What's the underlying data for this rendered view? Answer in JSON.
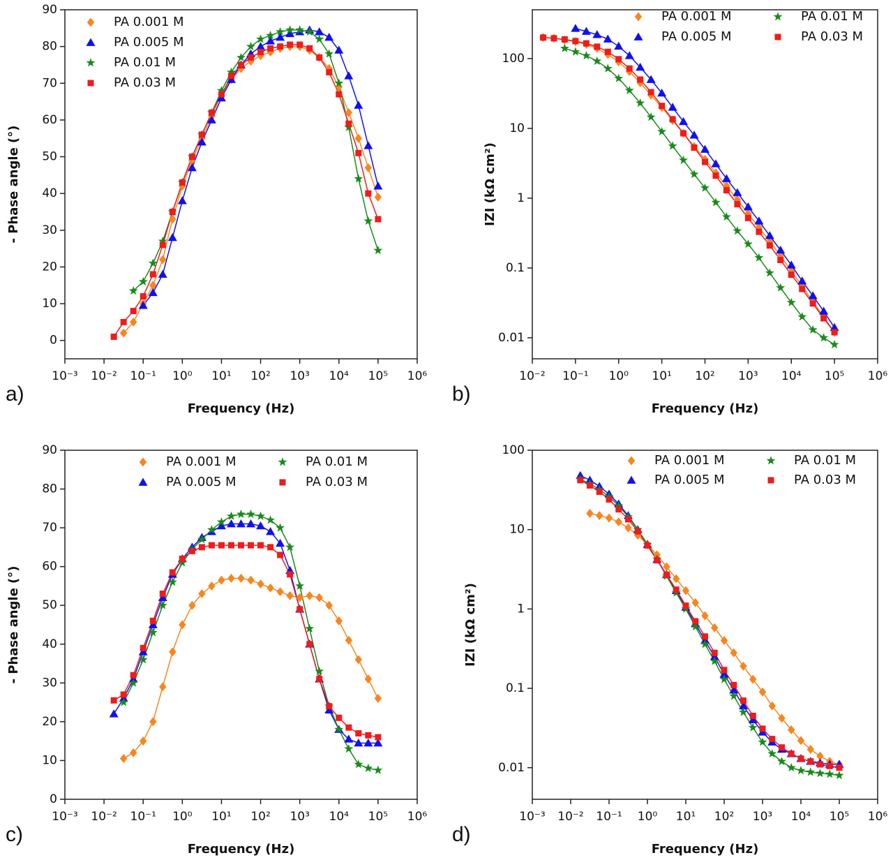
{
  "chart_data": [
    {
      "type": "line",
      "panel_label": "a)",
      "x_label": "Frequency (Hz)",
      "y_label": "- Phase angle (°)",
      "xscale": "log",
      "yscale": "linear",
      "legend": "upper left",
      "legend_columns": 1,
      "xlim": [
        0.001,
        1000000
      ],
      "xticks": [
        {
          "value": 0.001,
          "label": "10⁻³"
        },
        {
          "value": 0.01,
          "label": "10⁻²"
        },
        {
          "value": 0.1,
          "label": "10⁻¹"
        },
        {
          "value": 1,
          "label": "10⁰"
        },
        {
          "value": 10,
          "label": "10¹"
        },
        {
          "value": 100,
          "label": "10²"
        },
        {
          "value": 1000,
          "label": "10³"
        },
        {
          "value": 10000,
          "label": "10⁴"
        },
        {
          "value": 100000,
          "label": "10⁵"
        },
        {
          "value": 1000000,
          "label": "10⁶"
        }
      ],
      "ylim": [
        -5,
        90
      ],
      "yticks": [
        0,
        10,
        20,
        30,
        40,
        50,
        60,
        70,
        80,
        90
      ],
      "x": [
        0.0178,
        0.0316,
        0.0562,
        0.1,
        0.178,
        0.316,
        0.562,
        1,
        1.78,
        3.16,
        5.62,
        10,
        17.8,
        31.6,
        56.2,
        100,
        178,
        316,
        562,
        1000,
        1780,
        3160,
        5620,
        10000,
        17800,
        31600,
        56200,
        100000
      ],
      "series": [
        {
          "name": "PA 0.001 M",
          "color": "#f7861e",
          "marker": "diamond",
          "values": [
            null,
            2,
            5,
            10,
            15,
            22,
            33,
            42,
            49,
            55,
            61,
            67,
            71,
            74,
            76,
            77.5,
            78.5,
            79.5,
            80,
            80,
            79,
            77,
            74,
            69,
            62,
            55,
            47,
            39
          ]
        },
        {
          "name": "PA 0.005 M",
          "color": "#1010f0",
          "marker": "triangle",
          "values": [
            null,
            null,
            null,
            9.5,
            13,
            18,
            28,
            38,
            47,
            54,
            60,
            66,
            71,
            75,
            78,
            80,
            81.5,
            82.5,
            83.5,
            84,
            84.5,
            84,
            82.5,
            79,
            72,
            64,
            53,
            42
          ]
        },
        {
          "name": "PA 0.01 M",
          "color": "#1a8a1a",
          "marker": "star",
          "values": [
            null,
            null,
            13.5,
            16,
            21,
            27,
            35,
            43,
            50,
            56,
            62,
            68,
            73,
            77,
            80,
            82,
            83,
            84,
            84.5,
            84.5,
            84,
            82,
            78,
            70,
            58,
            44,
            32.5,
            24.5
          ]
        },
        {
          "name": "PA 0.03 M",
          "color": "#ee1c1c",
          "marker": "square",
          "values": [
            1,
            5,
            8,
            12,
            18,
            26,
            35,
            43,
            50,
            56,
            62,
            67,
            72,
            75,
            77,
            78.5,
            79.5,
            80,
            80.5,
            80.5,
            79.5,
            77,
            73,
            67,
            59,
            51,
            40,
            33
          ]
        }
      ]
    },
    {
      "type": "line",
      "panel_label": "b)",
      "x_label": "Frequency (Hz)",
      "y_label": "IZI (kΩ cm²)",
      "xscale": "log",
      "yscale": "log",
      "legend": "upper right",
      "legend_columns": 2,
      "xlim": [
        0.01,
        1000000
      ],
      "xticks": [
        {
          "value": 0.01,
          "label": "10⁻²"
        },
        {
          "value": 0.1,
          "label": "10⁻¹"
        },
        {
          "value": 1,
          "label": "10⁰"
        },
        {
          "value": 10,
          "label": "10¹"
        },
        {
          "value": 100,
          "label": "10²"
        },
        {
          "value": 1000,
          "label": "10³"
        },
        {
          "value": 10000,
          "label": "10⁴"
        },
        {
          "value": 100000,
          "label": "10⁵"
        },
        {
          "value": 1000000,
          "label": "10⁶"
        }
      ],
      "ylim": [
        0.005,
        500
      ],
      "yticks": [
        0.01,
        0.1,
        1,
        10,
        100
      ],
      "x": [
        0.0178,
        0.0316,
        0.0562,
        0.1,
        0.178,
        0.316,
        0.562,
        1,
        1.78,
        3.16,
        5.62,
        10,
        17.8,
        31.6,
        56.2,
        100,
        178,
        316,
        562,
        1000,
        1780,
        3160,
        5620,
        10000,
        17800,
        31600,
        56200,
        100000
      ],
      "series": [
        {
          "name": "PA 0.001 M",
          "color": "#f7861e",
          "marker": "diamond",
          "values": [
            200,
            195,
            185,
            175,
            160,
            140,
            115,
            90,
            65,
            45,
            30,
            20,
            13,
            8.5,
            5.5,
            3.6,
            2.3,
            1.5,
            0.95,
            0.6,
            0.38,
            0.24,
            0.15,
            0.09,
            0.055,
            0.033,
            0.02,
            0.012
          ]
        },
        {
          "name": "PA 0.005 M",
          "color": "#1010f0",
          "marker": "triangle",
          "values": [
            null,
            null,
            null,
            270,
            245,
            220,
            190,
            150,
            110,
            75,
            50,
            32,
            20,
            12.5,
            8,
            5,
            3.1,
            1.9,
            1.2,
            0.75,
            0.47,
            0.29,
            0.18,
            0.11,
            0.065,
            0.04,
            0.024,
            0.014
          ]
        },
        {
          "name": "PA 0.01 M",
          "color": "#1a8a1a",
          "marker": "star",
          "values": [
            null,
            null,
            140,
            125,
            110,
            92,
            72,
            52,
            35,
            23,
            14.5,
            9,
            5.6,
            3.5,
            2.2,
            1.4,
            0.87,
            0.54,
            0.34,
            0.22,
            0.14,
            0.085,
            0.052,
            0.032,
            0.02,
            0.013,
            0.01,
            0.008
          ]
        },
        {
          "name": "PA 0.03 M",
          "color": "#ee1c1c",
          "marker": "square",
          "values": [
            200,
            195,
            188,
            178,
            165,
            148,
            125,
            98,
            72,
            50,
            33,
            21,
            13.5,
            8.5,
            5.3,
            3.3,
            2.1,
            1.3,
            0.82,
            0.52,
            0.33,
            0.21,
            0.13,
            0.08,
            0.05,
            0.031,
            0.019,
            0.012
          ]
        }
      ]
    },
    {
      "type": "line",
      "panel_label": "c)",
      "x_label": "Frequency (Hz)",
      "y_label": "- Phase angle (°)",
      "xscale": "log",
      "yscale": "linear",
      "legend": "upper center",
      "legend_columns": 2,
      "xlim": [
        0.001,
        1000000
      ],
      "xticks": [
        {
          "value": 0.001,
          "label": "10⁻³"
        },
        {
          "value": 0.01,
          "label": "10⁻²"
        },
        {
          "value": 0.1,
          "label": "10⁻¹"
        },
        {
          "value": 1,
          "label": "10⁰"
        },
        {
          "value": 10,
          "label": "10¹"
        },
        {
          "value": 100,
          "label": "10²"
        },
        {
          "value": 1000,
          "label": "10³"
        },
        {
          "value": 10000,
          "label": "10⁴"
        },
        {
          "value": 100000,
          "label": "10⁵"
        },
        {
          "value": 1000000,
          "label": "10⁶"
        }
      ],
      "ylim": [
        0,
        90
      ],
      "yticks": [
        0,
        10,
        20,
        30,
        40,
        50,
        60,
        70,
        80,
        90
      ],
      "x": [
        0.0178,
        0.0316,
        0.0562,
        0.1,
        0.178,
        0.316,
        0.562,
        1,
        1.78,
        3.16,
        5.62,
        10,
        17.8,
        31.6,
        56.2,
        100,
        178,
        316,
        562,
        1000,
        1780,
        3160,
        5620,
        10000,
        17800,
        31600,
        56200,
        100000
      ],
      "series": [
        {
          "name": "PA 0.001 M",
          "color": "#f7861e",
          "marker": "diamond",
          "values": [
            null,
            10.5,
            12,
            15,
            20,
            29,
            38,
            45,
            50,
            53,
            55,
            56.5,
            57,
            57,
            56.5,
            55.5,
            54.5,
            53.5,
            52.5,
            52,
            52.5,
            52,
            50,
            46,
            41,
            36,
            31,
            26
          ]
        },
        {
          "name": "PA 0.005 M",
          "color": "#1010f0",
          "marker": "triangle",
          "values": [
            22,
            26,
            31,
            38,
            45,
            52,
            58,
            62,
            65,
            67.5,
            69,
            70.5,
            71,
            71,
            71,
            70.5,
            69,
            66,
            59,
            49,
            40,
            31,
            23,
            18,
            15.5,
            14.5,
            14.5,
            14.5
          ]
        },
        {
          "name": "PA 0.01 M",
          "color": "#1a8a1a",
          "marker": "star",
          "values": [
            null,
            25,
            30,
            36,
            43,
            50,
            56,
            61,
            64.5,
            67,
            69.5,
            71.5,
            73,
            73.5,
            73.5,
            73,
            72,
            70,
            65,
            55,
            44,
            33,
            24,
            18,
            13,
            9,
            8,
            7.5
          ]
        },
        {
          "name": "PA 0.03 M",
          "color": "#ee1c1c",
          "marker": "square",
          "values": [
            25.5,
            27,
            32,
            39,
            46,
            53,
            58.5,
            62,
            64,
            65,
            65.5,
            65.5,
            65.5,
            65.5,
            65.5,
            65.5,
            65,
            63,
            58,
            49,
            40,
            31,
            24,
            21,
            18.5,
            17,
            16.5,
            16
          ]
        }
      ]
    },
    {
      "type": "line",
      "panel_label": "d)",
      "x_label": "Frequency (Hz)",
      "y_label": "IZI (kΩ cm²)",
      "xscale": "log",
      "yscale": "log",
      "legend": "upper right",
      "legend_columns": 2,
      "xlim": [
        0.001,
        1000000
      ],
      "xticks": [
        {
          "value": 0.001,
          "label": "10⁻³"
        },
        {
          "value": 0.01,
          "label": "10⁻²"
        },
        {
          "value": 0.1,
          "label": "10⁻¹"
        },
        {
          "value": 1,
          "label": "10⁰"
        },
        {
          "value": 10,
          "label": "10¹"
        },
        {
          "value": 100,
          "label": "10²"
        },
        {
          "value": 1000,
          "label": "10³"
        },
        {
          "value": 10000,
          "label": "10⁴"
        },
        {
          "value": 100000,
          "label": "10⁵"
        },
        {
          "value": 1000000,
          "label": "10⁶"
        }
      ],
      "ylim": [
        0.004,
        100
      ],
      "yticks": [
        0.01,
        0.1,
        1,
        10,
        100
      ],
      "x": [
        0.0178,
        0.0316,
        0.0562,
        0.1,
        0.178,
        0.316,
        0.562,
        1,
        1.78,
        3.16,
        5.62,
        10,
        17.8,
        31.6,
        56.2,
        100,
        178,
        316,
        562,
        1000,
        1780,
        3160,
        5620,
        10000,
        17800,
        31600,
        56200,
        100000
      ],
      "series": [
        {
          "name": "PA 0.001 M",
          "color": "#f7861e",
          "marker": "diamond",
          "values": [
            null,
            16,
            15,
            14,
            12.5,
            10.5,
            8.5,
            6.5,
            4.8,
            3.4,
            2.4,
            1.7,
            1.2,
            0.82,
            0.58,
            0.4,
            0.28,
            0.19,
            0.13,
            0.09,
            0.06,
            0.042,
            0.03,
            0.022,
            0.017,
            0.014,
            0.012,
            0.011
          ]
        },
        {
          "name": "PA 0.005 M",
          "color": "#1010f0",
          "marker": "triangle",
          "values": [
            48,
            42,
            35,
            28,
            21,
            15,
            10,
            6.5,
            4.2,
            2.7,
            1.7,
            1.05,
            0.65,
            0.4,
            0.25,
            0.15,
            0.095,
            0.06,
            0.04,
            0.028,
            0.021,
            0.017,
            0.015,
            0.013,
            0.012,
            0.0115,
            0.011,
            0.011
          ]
        },
        {
          "name": "PA 0.01 M",
          "color": "#1a8a1a",
          "marker": "star",
          "values": [
            43,
            38,
            32,
            26,
            20,
            14.5,
            10,
            6.5,
            4.2,
            2.6,
            1.6,
            1,
            0.6,
            0.36,
            0.22,
            0.13,
            0.08,
            0.05,
            0.032,
            0.021,
            0.015,
            0.012,
            0.01,
            0.0092,
            0.0088,
            0.0085,
            0.0083,
            0.008
          ]
        },
        {
          "name": "PA 0.03 M",
          "color": "#ee1c1c",
          "marker": "square",
          "values": [
            42,
            36,
            30,
            24,
            18,
            13.5,
            9.5,
            6.3,
            4.1,
            2.7,
            1.75,
            1.1,
            0.7,
            0.45,
            0.28,
            0.17,
            0.11,
            0.07,
            0.045,
            0.031,
            0.023,
            0.018,
            0.015,
            0.013,
            0.012,
            0.011,
            0.0105,
            0.01
          ]
        }
      ]
    }
  ]
}
